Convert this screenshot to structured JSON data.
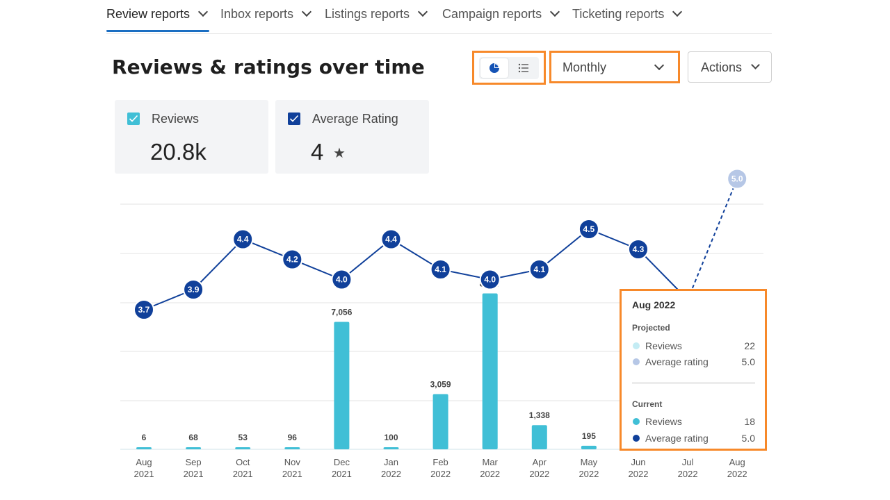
{
  "tabs": [
    {
      "label": "Review reports",
      "active": true
    },
    {
      "label": "Inbox reports",
      "active": false
    },
    {
      "label": "Listings reports",
      "active": false
    },
    {
      "label": "Campaign reports",
      "active": false
    },
    {
      "label": "Ticketing reports",
      "active": false
    }
  ],
  "page_title": "Reviews & ratings over time",
  "view_toggle": {
    "chart_icon": "pie-chart-icon",
    "list_icon": "list-icon"
  },
  "frequency": {
    "selected": "Monthly"
  },
  "actions": {
    "label": "Actions"
  },
  "metrics": {
    "reviews": {
      "label": "Reviews",
      "value": "20.8k",
      "checked": true,
      "color": "#40bfd6"
    },
    "rating": {
      "label": "Average Rating",
      "value": "4",
      "star": "★",
      "checked": true,
      "color": "#10409a"
    }
  },
  "tooltip": {
    "title": "Aug 2022",
    "projected": {
      "label": "Projected",
      "rows": [
        {
          "name": "Reviews",
          "value": "22",
          "color": "#c4ecf4"
        },
        {
          "name": "Average rating",
          "value": "5.0",
          "color": "#b6c7e6"
        }
      ]
    },
    "current": {
      "label": "Current",
      "rows": [
        {
          "name": "Reviews",
          "value": "18",
          "color": "#40bfd6"
        },
        {
          "name": "Average rating",
          "value": "5.0",
          "color": "#10409a"
        }
      ]
    }
  },
  "chart_data": {
    "type": "bar",
    "categories": [
      "Aug 2021",
      "Sep 2021",
      "Oct 2021",
      "Nov 2021",
      "Dec 2021",
      "Jan 2022",
      "Feb 2022",
      "Mar 2022",
      "Apr 2022",
      "May 2022",
      "Jun 2022",
      "Jul 2022",
      "Aug 2022"
    ],
    "x_tick_labels": [
      [
        "Aug",
        "2021"
      ],
      [
        "Sep",
        "2021"
      ],
      [
        "Oct",
        "2021"
      ],
      [
        "Nov",
        "2021"
      ],
      [
        "Dec",
        "2021"
      ],
      [
        "Jan",
        "2022"
      ],
      [
        "Feb",
        "2022"
      ],
      [
        "Mar",
        "2022"
      ],
      [
        "Apr",
        "2022"
      ],
      [
        "May",
        "2022"
      ],
      [
        "Jun",
        "2022"
      ],
      [
        "Jul",
        "2022"
      ],
      [
        "Aug",
        "2022"
      ]
    ],
    "series": [
      {
        "name": "Reviews",
        "type": "bar",
        "color": "#40bfd6",
        "values": [
          6,
          68,
          53,
          96,
          7056,
          100,
          3059,
          8637,
          1338,
          195,
          null,
          null,
          null
        ],
        "value_labels": [
          "6",
          "68",
          "53",
          "96",
          "7,056",
          "100",
          "3,059",
          "8,637",
          "1,338",
          "195",
          "",
          "",
          ""
        ]
      },
      {
        "name": "Average rating",
        "type": "line",
        "color": "#10409a",
        "values": [
          3.7,
          3.9,
          4.4,
          4.2,
          4.0,
          4.4,
          4.1,
          4.0,
          4.1,
          4.5,
          4.3,
          3.8,
          null
        ],
        "value_labels": [
          "3.7",
          "3.9",
          "4.4",
          "4.2",
          "4.0",
          "4.4",
          "4.1",
          "4.0",
          "4.1",
          "4.5",
          "4.3",
          "3.8",
          ""
        ]
      },
      {
        "name": "Projected average rating",
        "type": "line",
        "style": "dashed",
        "color": "#b6c7e6",
        "values": [
          null,
          null,
          null,
          null,
          null,
          null,
          null,
          null,
          null,
          null,
          null,
          3.8,
          5.0
        ],
        "value_labels": [
          "",
          "",
          "",
          "",
          "",
          "",
          "",
          "",
          "",
          "",
          "",
          "",
          "5.0"
        ]
      }
    ],
    "bar_ylim": [
      0,
      10000
    ],
    "grid": true,
    "legend": "none",
    "xlabel": "",
    "ylabel": ""
  }
}
